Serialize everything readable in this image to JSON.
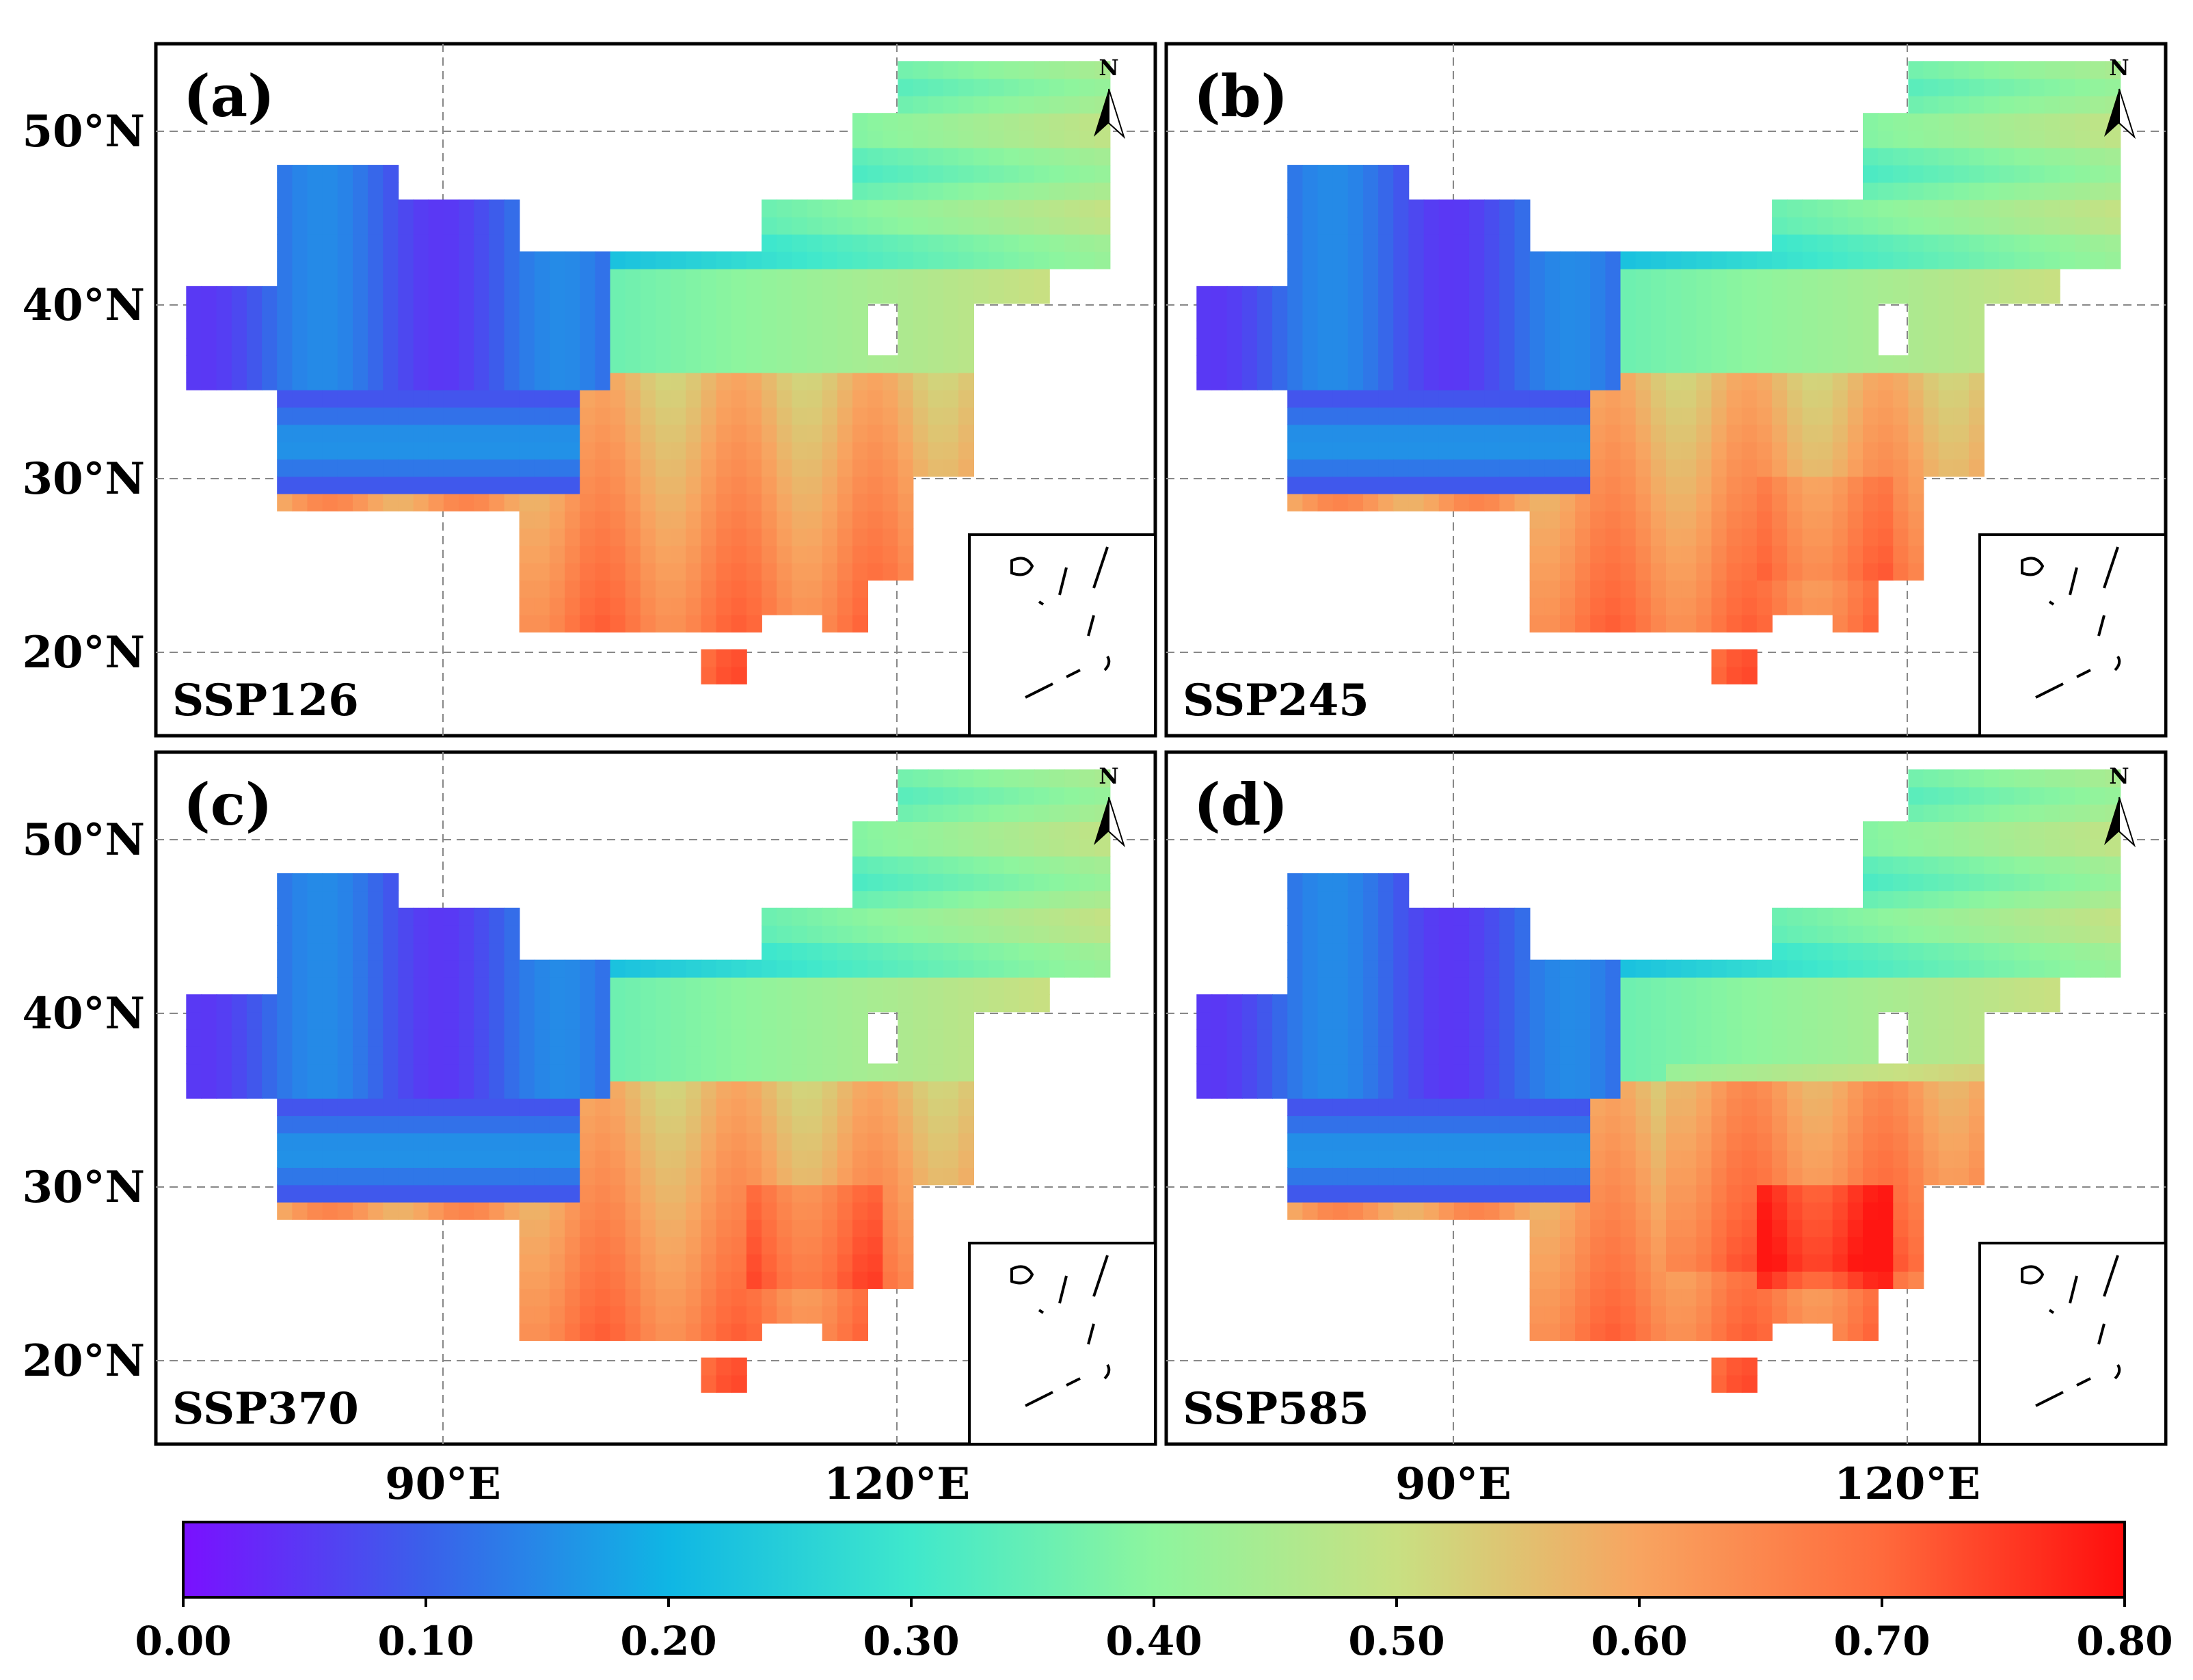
{
  "figure": {
    "panels": [
      {
        "letter": "(a)",
        "scenario": "SSP126"
      },
      {
        "letter": "(b)",
        "scenario": "SSP245"
      },
      {
        "letter": "(c)",
        "scenario": "SSP370"
      },
      {
        "letter": "(d)",
        "scenario": "SSP585"
      }
    ],
    "lat_labels": [
      "50°N",
      "40°N",
      "30°N",
      "20°N"
    ],
    "lon_labels": [
      "90°E",
      "120°E"
    ],
    "north_label": "N",
    "colorbar": {
      "ticks": [
        "0.00",
        "0.10",
        "0.20",
        "0.30",
        "0.40",
        "0.50",
        "0.60",
        "0.70",
        "0.80"
      ],
      "colors": [
        "#7a10ff",
        "#3a60ea",
        "#0fb6e4",
        "#3fe8cc",
        "#8df59e",
        "#c8e082",
        "#f8a460",
        "#ff6a3c",
        "#ff0d0d"
      ]
    }
  },
  "chart_data": {
    "type": "heatmap",
    "extent": {
      "lon": [
        72,
        138
      ],
      "lat": [
        15,
        55
      ]
    },
    "value_range": [
      0,
      0.8
    ],
    "scenarios": [
      "SSP126",
      "SSP245",
      "SSP370",
      "SSP585"
    ]
  }
}
